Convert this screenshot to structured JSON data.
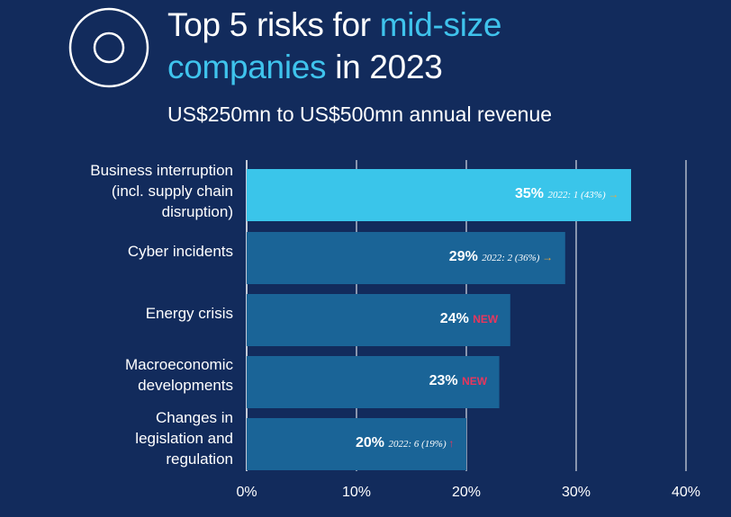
{
  "title_part1": "Top 5 risks for ",
  "title_highlight1": "mid-size",
  "title_highlight2": "companies",
  "title_part2": " in 2023",
  "subtitle": "US$250mn to US$500mn annual revenue",
  "colors": {
    "background": "#122b5c",
    "highlight_bar": "#3ac5ea",
    "bar": "#1a6497",
    "title_accent": "#3fc3ec",
    "new_badge": "#e8365d",
    "arrow_side": "#f0a83a",
    "arrow_up": "#e8365d"
  },
  "chart_data": {
    "type": "bar",
    "orientation": "horizontal",
    "categories": [
      "Business interruption\n(incl. supply chain\ndisruption)",
      "Cyber incidents",
      "Energy crisis",
      "Macroeconomic\ndevelopments",
      "Changes in\nlegislation and\nregulation"
    ],
    "values": [
      35,
      29,
      24,
      23,
      20
    ],
    "value_labels": [
      "35%",
      "29%",
      "24%",
      "23%",
      "20%"
    ],
    "notes": [
      {
        "text": "2022: 1 (43%)",
        "arrow": "→"
      },
      {
        "text": "2022: 2 (36%)",
        "arrow": "→"
      },
      {
        "badge": "NEW"
      },
      {
        "badge": "NEW"
      },
      {
        "text": "2022: 6 (19%)",
        "arrow": "↑"
      }
    ],
    "xlim": [
      0,
      40
    ],
    "xticks": [
      "0%",
      "10%",
      "20%",
      "30%",
      "40%"
    ],
    "grid": true,
    "highlight_index": 0
  }
}
